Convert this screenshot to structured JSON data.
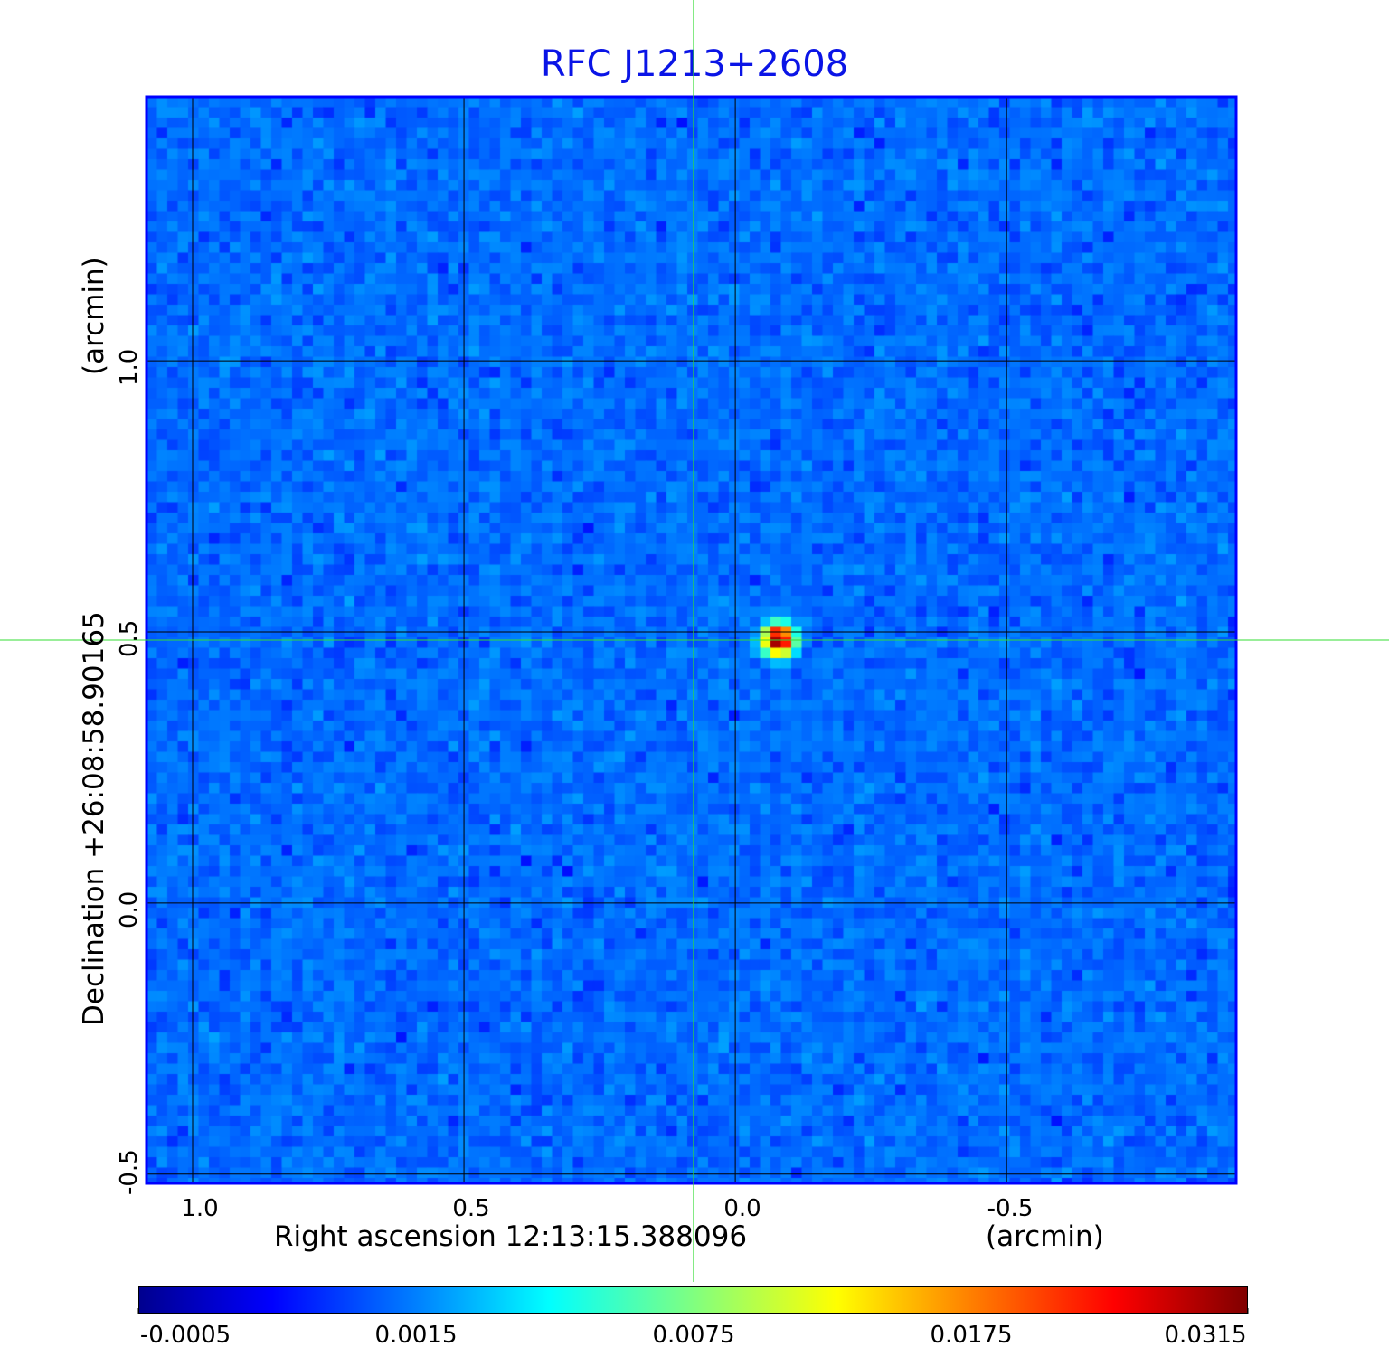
{
  "chart_data": {
    "type": "heatmap",
    "title": "RFC J1213+2608",
    "xlabel": "Right ascension  12:13:15.388096",
    "xunit": "(arcmin)",
    "ylabel": "Declination  +26:08:58.90165",
    "yunit": "(arcmin)",
    "xlim": [
      1.085,
      -0.923
    ],
    "ylim": [
      -0.517,
      1.487
    ],
    "xticks": [
      "1.0",
      "0.5",
      "0.0",
      "-0.5"
    ],
    "xtick_values": [
      1.0,
      0.5,
      0.0,
      -0.5
    ],
    "yticks": [
      "-0.5",
      "0.0",
      "0.5",
      "1.0"
    ],
    "ytick_values": [
      -0.5,
      0.0,
      0.5,
      1.0
    ],
    "grid": true,
    "colormap": "jet",
    "colorbar": {
      "position": "bottom",
      "ticks": [
        "-0.0005",
        "0.0015",
        "0.0075",
        "0.0175",
        "0.0315"
      ],
      "range": [
        -0.0005,
        0.0315
      ]
    },
    "source_peak": {
      "x": -0.08,
      "y": 0.485,
      "value": 0.0315
    },
    "background_level": 0.0002,
    "crosshair": {
      "x": 0.077,
      "y": 0.485,
      "color": "#33dd33"
    },
    "colors": {
      "title": "#0a14e6",
      "frame": "#0000ff",
      "grid": "#000000"
    }
  }
}
